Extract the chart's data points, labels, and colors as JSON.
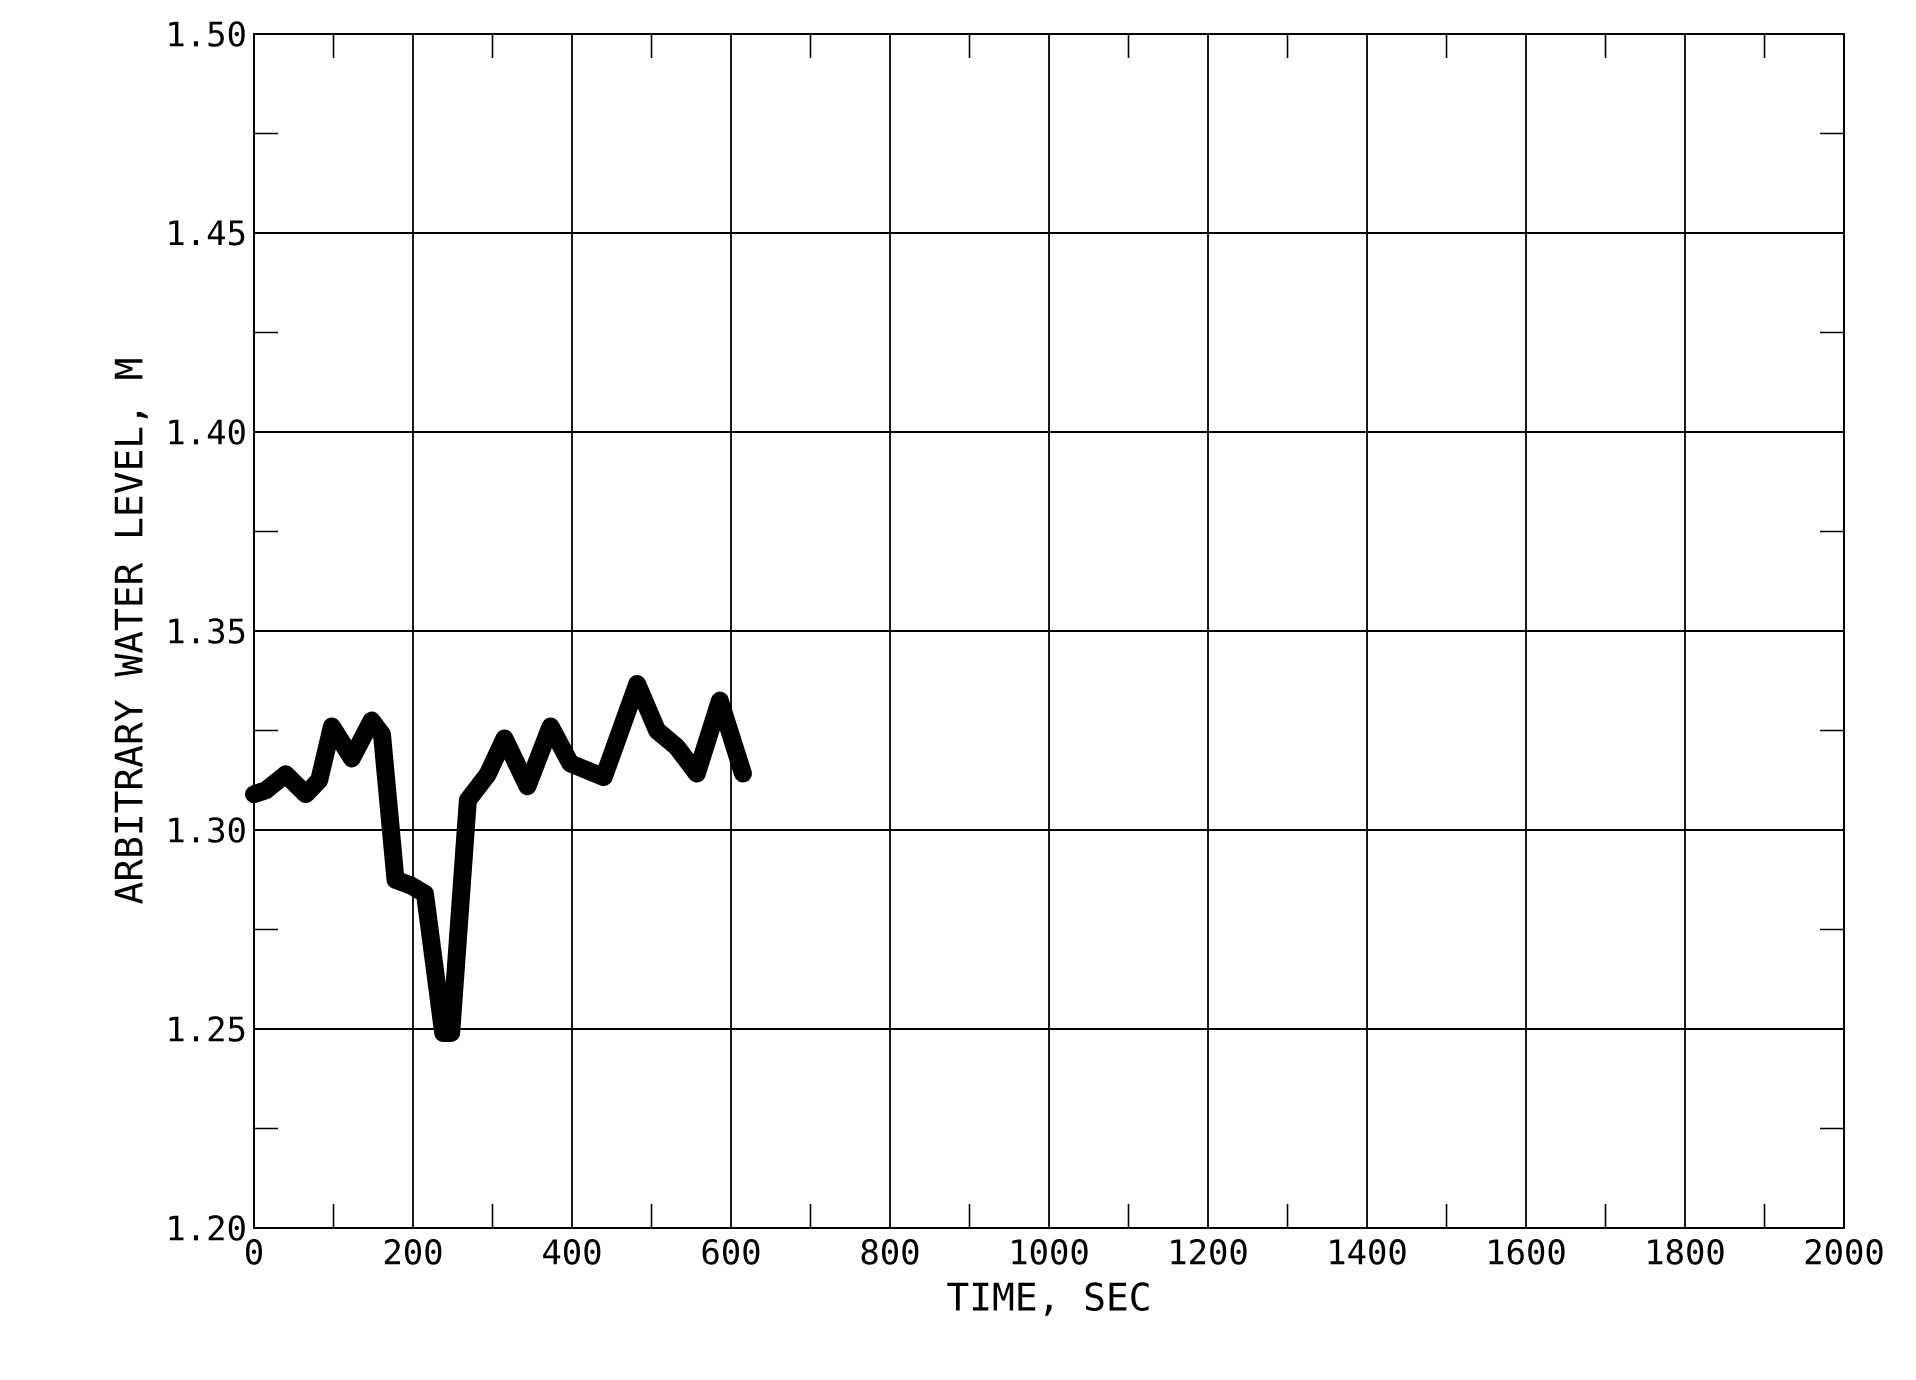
{
  "chart_data": {
    "type": "line",
    "xlabel": "TIME, SEC",
    "ylabel": "ARBITRARY WATER LEVEL, M",
    "xlim": [
      0,
      2000
    ],
    "ylim": [
      1.2,
      1.5
    ],
    "xticks": [
      0,
      200,
      400,
      600,
      800,
      1000,
      1200,
      1400,
      1600,
      1800,
      2000
    ],
    "yticks": [
      {
        "value": 1.2,
        "label": "1.20"
      },
      1.25,
      {
        "value": 1.3,
        "label": "1.30"
      },
      1.35,
      {
        "value": 1.4,
        "label": "1.40"
      },
      1.45,
      {
        "value": 1.5,
        "label": "1.50"
      }
    ],
    "grid": true,
    "marker": "none",
    "line_style": "solid",
    "series": [
      {
        "color": "#000000",
        "x": [
          0,
          15,
          40,
          65,
          82,
          98,
          123,
          148,
          161,
          178,
          198,
          215,
          238,
          248,
          269,
          294,
          315,
          344,
          373,
          398,
          440,
          482,
          507,
          532,
          557,
          586,
          615
        ],
        "values": [
          1.309,
          1.31,
          1.314,
          1.309,
          1.3125,
          1.326,
          1.318,
          1.3275,
          1.324,
          1.2875,
          1.286,
          1.284,
          1.249,
          1.249,
          1.3075,
          1.314,
          1.323,
          1.311,
          1.326,
          1.3167,
          1.3133,
          1.3367,
          1.325,
          1.3208,
          1.3142,
          1.3325,
          1.3142
        ]
      }
    ]
  }
}
